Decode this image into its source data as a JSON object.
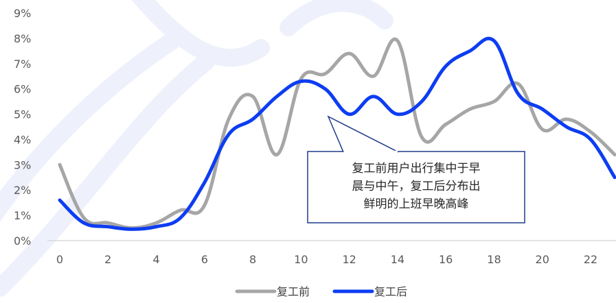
{
  "colors": {
    "before": "#a6a6a6",
    "after": "#0d3df2",
    "callout_border": "#1f3c8c",
    "axis": "#d9d9d9",
    "watermark": "#eef1fb"
  },
  "chart_data": {
    "type": "line",
    "x": [
      0,
      1,
      2,
      3,
      4,
      5,
      6,
      7,
      8,
      9,
      10,
      11,
      12,
      13,
      14,
      15,
      16,
      17,
      18,
      19,
      20,
      21,
      22,
      23
    ],
    "xticks": [
      0,
      2,
      4,
      6,
      8,
      10,
      12,
      14,
      16,
      18,
      20,
      22
    ],
    "xlim": [
      -0.5,
      23
    ],
    "ylim": [
      0,
      9
    ],
    "yticks": [
      {
        "value": 0,
        "label": "0%"
      },
      {
        "value": 1,
        "label": "1%"
      },
      {
        "value": 2,
        "label": "2%"
      },
      {
        "value": 3,
        "label": "3%"
      },
      {
        "value": 4,
        "label": "4%"
      },
      {
        "value": 5,
        "label": "5%"
      },
      {
        "value": 6,
        "label": "6%"
      },
      {
        "value": 7,
        "label": "7%"
      },
      {
        "value": 8,
        "label": "8%"
      },
      {
        "value": 9,
        "label": "9%"
      }
    ],
    "grid": false,
    "legend_position": "bottom",
    "series": [
      {
        "name": "复工前",
        "color": "#a6a6a6",
        "values": [
          3.0,
          0.9,
          0.7,
          0.5,
          0.7,
          1.2,
          1.4,
          4.8,
          5.7,
          3.4,
          6.4,
          6.6,
          7.4,
          6.5,
          7.9,
          4.1,
          4.6,
          5.2,
          5.5,
          6.2,
          4.4,
          4.8,
          4.3,
          3.4
        ]
      },
      {
        "name": "复工后",
        "color": "#0d3df2",
        "values": [
          1.6,
          0.7,
          0.55,
          0.45,
          0.55,
          0.9,
          2.3,
          4.2,
          4.8,
          5.7,
          6.3,
          6.0,
          5.0,
          5.7,
          5.0,
          5.5,
          6.9,
          7.5,
          7.9,
          5.8,
          5.2,
          4.5,
          4.0,
          2.5
        ]
      }
    ],
    "annotation": {
      "lines": [
        "复工前用户出行集中于早",
        "晨与中午，复工后分布出",
        "鲜明的上班早晚高峰"
      ]
    }
  }
}
